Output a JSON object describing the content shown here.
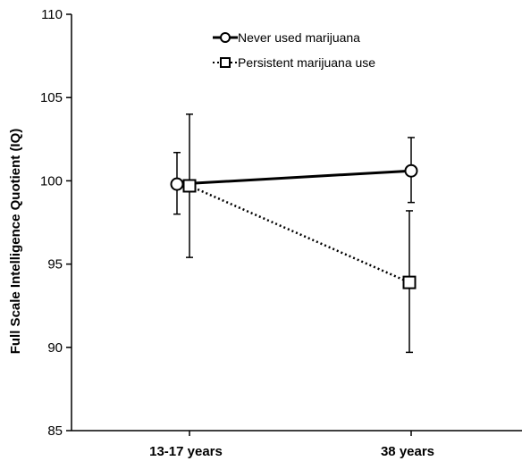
{
  "chart_data": {
    "type": "line",
    "title": "",
    "xlabel": "",
    "ylabel": "Full Scale Intelligence Quotient (IQ)",
    "categories": [
      "13-17 years",
      "38 years"
    ],
    "ylim": [
      85,
      110
    ],
    "yticks": [
      85,
      90,
      95,
      100,
      105,
      110
    ],
    "grid": false,
    "legend_position": "top-center",
    "series": [
      {
        "name": "Never used marijuana",
        "values": [
          99.8,
          100.6
        ],
        "error_low": [
          98.0,
          98.7
        ],
        "error_high": [
          101.7,
          102.6
        ],
        "line_style": "solid",
        "marker": "circle",
        "color": "#000000"
      },
      {
        "name": "Persistent marijuana use",
        "values": [
          99.7,
          93.9
        ],
        "error_low": [
          95.4,
          89.7
        ],
        "error_high": [
          104.0,
          98.2
        ],
        "line_style": "dotted",
        "marker": "square",
        "color": "#000000"
      }
    ]
  }
}
